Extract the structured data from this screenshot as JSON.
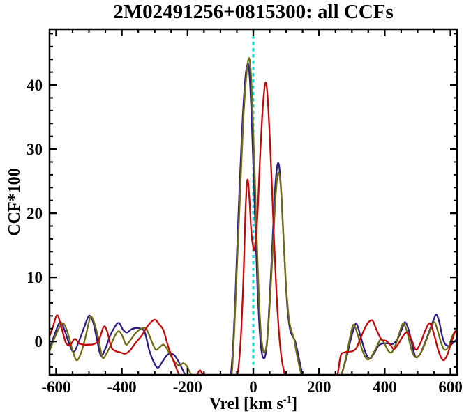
{
  "figure": {
    "title": "2M02491256+0815300: all CCFs"
  },
  "chart_data": {
    "type": "line",
    "title": "2M02491256+0815300: all CCFs",
    "xlabel": "Vrel [km s-1]",
    "xlabel_parts": {
      "pre": "Vrel [km s",
      "sup": "-1",
      "post": "]"
    },
    "ylabel": "CCF*100",
    "xlim": [
      -620,
      620
    ],
    "ylim": [
      -5.2,
      48.7
    ],
    "grid": false,
    "legend": "none",
    "x_ticks": [
      {
        "v": -600,
        "label": "-600"
      },
      {
        "v": -400,
        "label": "-400"
      },
      {
        "v": -200,
        "label": "-200"
      },
      {
        "v": 0,
        "label": "0"
      },
      {
        "v": 200,
        "label": "200"
      },
      {
        "v": 400,
        "label": "400"
      },
      {
        "v": 600,
        "label": "600"
      }
    ],
    "x_minor_step": 50,
    "y_ticks": [
      {
        "v": 0,
        "label": "0"
      },
      {
        "v": 10,
        "label": "10"
      },
      {
        "v": 20,
        "label": "20"
      },
      {
        "v": 30,
        "label": "30"
      },
      {
        "v": 40,
        "label": "40"
      }
    ],
    "y_minor_step": 2,
    "vline": {
      "x": 0,
      "color": "#00d9d9",
      "style": "dotted"
    },
    "colors": {
      "frame": "#000000",
      "red": "#c40808",
      "navy": "#2c1c87",
      "olive": "#6f6c12",
      "cyan": "#00d9d9"
    },
    "series": [
      {
        "name": "ccf-navy",
        "color": "#2c1c87",
        "points": [
          [
            -620,
            -1.2
          ],
          [
            -606,
            0.9
          ],
          [
            -588,
            3.0
          ],
          [
            -574,
            1.7
          ],
          [
            -560,
            -0.4
          ],
          [
            -546,
            -1.6
          ],
          [
            -530,
            0.1
          ],
          [
            -514,
            2.3
          ],
          [
            -500,
            4.0
          ],
          [
            -488,
            3.1
          ],
          [
            -476,
            0.4
          ],
          [
            -464,
            -2.2
          ],
          [
            -450,
            -1.1
          ],
          [
            -436,
            0.9
          ],
          [
            -421,
            2.3
          ],
          [
            -409,
            2.9
          ],
          [
            -396,
            1.8
          ],
          [
            -384,
            1.4
          ],
          [
            -371,
            1.9
          ],
          [
            -357,
            2.1
          ],
          [
            -343,
            2.0
          ],
          [
            -330,
            1.4
          ],
          [
            -317,
            -1.3
          ],
          [
            -303,
            -3.2
          ],
          [
            -290,
            -4.1
          ],
          [
            -276,
            -3.1
          ],
          [
            -262,
            -2.1
          ],
          [
            -250,
            -1.9
          ],
          [
            -239,
            -2.2
          ],
          [
            -227,
            -3.2
          ],
          [
            -214,
            -4.5
          ],
          [
            -203,
            -5.7
          ],
          [
            -190,
            -6.8
          ],
          [
            -170,
            -7
          ],
          [
            -130,
            -7
          ],
          [
            -95,
            -7
          ],
          [
            -72,
            -6
          ],
          [
            -62,
            -1
          ],
          [
            -54,
            8
          ],
          [
            -45,
            20
          ],
          [
            -35,
            32
          ],
          [
            -26,
            40
          ],
          [
            -18,
            43.2
          ],
          [
            -12,
            42
          ],
          [
            -5,
            35
          ],
          [
            1,
            26
          ],
          [
            7,
            17
          ],
          [
            13,
            8
          ],
          [
            19,
            2
          ],
          [
            25,
            -1.5
          ],
          [
            31,
            -2.6
          ],
          [
            37,
            -2.1
          ],
          [
            43,
            0.6
          ],
          [
            49,
            6
          ],
          [
            56,
            13
          ],
          [
            62,
            19.5
          ],
          [
            68,
            25
          ],
          [
            75,
            27.8
          ],
          [
            81,
            26.3
          ],
          [
            87,
            21.5
          ],
          [
            93,
            15
          ],
          [
            99,
            9
          ],
          [
            106,
            4
          ],
          [
            113,
            1.6
          ],
          [
            120,
            0.8
          ],
          [
            127,
            0.1
          ],
          [
            134,
            -1.4
          ],
          [
            142,
            -3.4
          ],
          [
            150,
            -5.2
          ],
          [
            162,
            -7
          ],
          [
            200,
            -7
          ],
          [
            245,
            -7
          ],
          [
            262,
            -6
          ],
          [
            274,
            -4.2
          ],
          [
            285,
            -2.2
          ],
          [
            296,
            0.2
          ],
          [
            307,
            2.2
          ],
          [
            315,
            2.7
          ],
          [
            328,
            0.5
          ],
          [
            342,
            -1.8
          ],
          [
            354,
            -2.7
          ],
          [
            368,
            -1.8
          ],
          [
            382,
            -0.6
          ],
          [
            396,
            -0.3
          ],
          [
            410,
            -0.3
          ],
          [
            424,
            -0.4
          ],
          [
            439,
            0.4
          ],
          [
            452,
            1.9
          ],
          [
            462,
            3.0
          ],
          [
            474,
            1.6
          ],
          [
            485,
            -0.9
          ],
          [
            494,
            -2.4
          ],
          [
            506,
            -2.1
          ],
          [
            520,
            -0.5
          ],
          [
            534,
            1.4
          ],
          [
            548,
            3.3
          ],
          [
            557,
            4.2
          ],
          [
            566,
            3.0
          ],
          [
            575,
            0.8
          ],
          [
            584,
            -0.4
          ],
          [
            596,
            -0.7
          ],
          [
            608,
            -0.2
          ],
          [
            620,
            0.4
          ]
        ]
      },
      {
        "name": "ccf-olive",
        "color": "#6f6c12",
        "points": [
          [
            -620,
            -1.5
          ],
          [
            -606,
            0.4
          ],
          [
            -591,
            2.1
          ],
          [
            -578,
            2.8
          ],
          [
            -565,
            1.4
          ],
          [
            -551,
            -1.2
          ],
          [
            -538,
            -2.9
          ],
          [
            -525,
            -1.9
          ],
          [
            -511,
            0.6
          ],
          [
            -499,
            3.3
          ],
          [
            -493,
            3.9
          ],
          [
            -484,
            2.9
          ],
          [
            -471,
            0.4
          ],
          [
            -459,
            -2.5
          ],
          [
            -447,
            -1.9
          ],
          [
            -434,
            -0.6
          ],
          [
            -420,
            1.0
          ],
          [
            -409,
            1.6
          ],
          [
            -398,
            0.8
          ],
          [
            -387,
            -0.5
          ],
          [
            -374,
            0.2
          ],
          [
            -360,
            1.2
          ],
          [
            -347,
            1.8
          ],
          [
            -334,
            2.1
          ],
          [
            -326,
            2.0
          ],
          [
            -316,
            0.9
          ],
          [
            -306,
            -0.4
          ],
          [
            -296,
            -1.3
          ],
          [
            -285,
            -0.9
          ],
          [
            -273,
            -0.5
          ],
          [
            -261,
            -1.3
          ],
          [
            -249,
            -2.4
          ],
          [
            -237,
            -3.3
          ],
          [
            -225,
            -3.8
          ],
          [
            -214,
            -3.4
          ],
          [
            -204,
            -3.7
          ],
          [
            -194,
            -4.7
          ],
          [
            -186,
            -5.5
          ],
          [
            -172,
            -6.8
          ],
          [
            -140,
            -7
          ],
          [
            -100,
            -7
          ],
          [
            -70,
            -6.2
          ],
          [
            -60,
            -0.5
          ],
          [
            -51,
            10
          ],
          [
            -41,
            22
          ],
          [
            -31,
            34
          ],
          [
            -21,
            41.5
          ],
          [
            -13,
            44.2
          ],
          [
            -7,
            41.5
          ],
          [
            -1,
            34
          ],
          [
            5,
            25
          ],
          [
            11,
            15.5
          ],
          [
            17,
            7
          ],
          [
            23,
            1.5
          ],
          [
            29,
            -1.2
          ],
          [
            34,
            -1.7
          ],
          [
            40,
            -0.7
          ],
          [
            46,
            2.5
          ],
          [
            53,
            8.5
          ],
          [
            60,
            15
          ],
          [
            66,
            21
          ],
          [
            72,
            25.2
          ],
          [
            78,
            26.3
          ],
          [
            84,
            23.8
          ],
          [
            90,
            18
          ],
          [
            96,
            12
          ],
          [
            103,
            6.5
          ],
          [
            110,
            3
          ],
          [
            117,
            1.5
          ],
          [
            124,
            0.4
          ],
          [
            131,
            -1.6
          ],
          [
            139,
            -3.6
          ],
          [
            147,
            -5.3
          ],
          [
            158,
            -7
          ],
          [
            200,
            -7
          ],
          [
            248,
            -7
          ],
          [
            263,
            -6.2
          ],
          [
            275,
            -4
          ],
          [
            287,
            -1.2
          ],
          [
            298,
            1.5
          ],
          [
            306,
            2.6
          ],
          [
            318,
            1.0
          ],
          [
            332,
            -1.4
          ],
          [
            347,
            -2.8
          ],
          [
            361,
            -2.2
          ],
          [
            374,
            -1.0
          ],
          [
            387,
            0.3
          ],
          [
            398,
            -0.2
          ],
          [
            410,
            -1.4
          ],
          [
            421,
            -1.7
          ],
          [
            434,
            -0.4
          ],
          [
            447,
            1.7
          ],
          [
            457,
            2.8
          ],
          [
            469,
            1.3
          ],
          [
            481,
            -1.2
          ],
          [
            492,
            -2.4
          ],
          [
            504,
            -2.2
          ],
          [
            517,
            -1.0
          ],
          [
            531,
            0.8
          ],
          [
            544,
            2.5
          ],
          [
            552,
            3.0
          ],
          [
            562,
            1.5
          ],
          [
            572,
            -0.3
          ],
          [
            582,
            -1.3
          ],
          [
            594,
            -0.8
          ],
          [
            606,
            0.9
          ],
          [
            615,
            1.5
          ],
          [
            620,
            1.2
          ]
        ]
      },
      {
        "name": "ccf-red",
        "color": "#c40808",
        "points": [
          [
            -620,
            0.8
          ],
          [
            -610,
            2.2
          ],
          [
            -597,
            4.1
          ],
          [
            -585,
            2.4
          ],
          [
            -570,
            -0.2
          ],
          [
            -557,
            -0.5
          ],
          [
            -543,
            0.4
          ],
          [
            -530,
            -0.3
          ],
          [
            -515,
            -0.5
          ],
          [
            -500,
            -0.5
          ],
          [
            -485,
            -0.4
          ],
          [
            -470,
            0.2
          ],
          [
            -455,
            2.3
          ],
          [
            -445,
            1.6
          ],
          [
            -432,
            -0.9
          ],
          [
            -418,
            -1.5
          ],
          [
            -404,
            -1.7
          ],
          [
            -390,
            -1.9
          ],
          [
            -375,
            -1.4
          ],
          [
            -358,
            -0.2
          ],
          [
            -340,
            0.9
          ],
          [
            -320,
            2.5
          ],
          [
            -300,
            3.4
          ],
          [
            -287,
            2.7
          ],
          [
            -274,
            1.8
          ],
          [
            -260,
            -0.6
          ],
          [
            -246,
            -2.6
          ],
          [
            -233,
            -4.3
          ],
          [
            -222,
            -5.6
          ],
          [
            -208,
            -6.6
          ],
          [
            -192,
            -6.9
          ],
          [
            -176,
            -5.9
          ],
          [
            -163,
            -4.5
          ],
          [
            -150,
            -5.6
          ],
          [
            -135,
            -6.9
          ],
          [
            -110,
            -7
          ],
          [
            -80,
            -7
          ],
          [
            -60,
            -6.8
          ],
          [
            -48,
            -5.2
          ],
          [
            -38,
            0.5
          ],
          [
            -30,
            10
          ],
          [
            -24,
            20
          ],
          [
            -18,
            25.2
          ],
          [
            -12,
            22.5
          ],
          [
            -6,
            17
          ],
          [
            0,
            14.6
          ],
          [
            3,
            14.3
          ],
          [
            8,
            16
          ],
          [
            14,
            21
          ],
          [
            20,
            28
          ],
          [
            27,
            35
          ],
          [
            33,
            39
          ],
          [
            38,
            40.4
          ],
          [
            43,
            38.5
          ],
          [
            49,
            33
          ],
          [
            56,
            25
          ],
          [
            63,
            16
          ],
          [
            70,
            8
          ],
          [
            78,
            1.5
          ],
          [
            86,
            -2.6
          ],
          [
            94,
            -4.8
          ],
          [
            102,
            -6.2
          ],
          [
            115,
            -7
          ],
          [
            150,
            -7
          ],
          [
            200,
            -7
          ],
          [
            240,
            -7
          ],
          [
            256,
            -5.2
          ],
          [
            266,
            -2.2
          ],
          [
            278,
            -1.7
          ],
          [
            290,
            -1.6
          ],
          [
            302,
            -1.5
          ],
          [
            314,
            -1.0
          ],
          [
            327,
            0.6
          ],
          [
            345,
            2.6
          ],
          [
            362,
            3.3
          ],
          [
            375,
            1.8
          ],
          [
            390,
            0.3
          ],
          [
            404,
            0.1
          ],
          [
            418,
            -0.6
          ],
          [
            428,
            -1.2
          ],
          [
            441,
            -0.4
          ],
          [
            455,
            0.8
          ],
          [
            468,
            1.4
          ],
          [
            482,
            0.2
          ],
          [
            495,
            -1.3
          ],
          [
            509,
            -0.2
          ],
          [
            524,
            1.8
          ],
          [
            537,
            2.8
          ],
          [
            549,
            1.3
          ],
          [
            563,
            -1.4
          ],
          [
            577,
            -2.9
          ],
          [
            590,
            -2.1
          ],
          [
            604,
            0.1
          ],
          [
            615,
            1.6
          ],
          [
            620,
            1.4
          ]
        ]
      }
    ]
  }
}
